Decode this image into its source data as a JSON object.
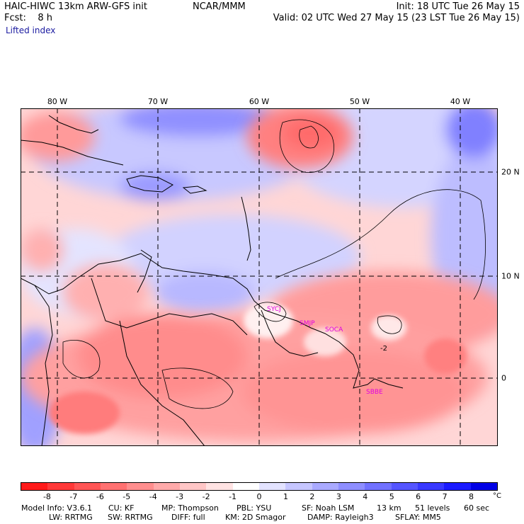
{
  "header": {
    "model": "HAIC-HIWC 13km ARW-GFS init",
    "org": "NCAR/MMM",
    "fcst": "Fcst:    8 h",
    "field": "Lifted index",
    "init": "Init: 18 UTC Tue 26 May 15",
    "valid": "Valid: 02 UTC Wed 27 May 15 (23 LST Tue 26 May 15)"
  },
  "map": {
    "lon_labels": [
      "80 W",
      "70 W",
      "60 W",
      "50 W",
      "40 W"
    ],
    "lat_labels": [
      "20 N",
      "10 N",
      "0"
    ],
    "stations": [
      "SYCJ",
      "SMJP",
      "SOCA",
      "SBBE"
    ],
    "contour_label": "-2"
  },
  "colorbar": {
    "colors": [
      "#ff1a1a",
      "#ff3838",
      "#ff5555",
      "#ff7171",
      "#ff8e8e",
      "#ffaaaa",
      "#ffc6c6",
      "#ffe3e3",
      "#ffffff",
      "#e3e3ff",
      "#c6c6ff",
      "#aaaaff",
      "#8e8eff",
      "#7171ff",
      "#5555ff",
      "#3838ff",
      "#1a1aff",
      "#0000e6"
    ],
    "labels": [
      "-8",
      "-7",
      "-6",
      "-5",
      "-4",
      "-3",
      "-2",
      "-1",
      "0",
      "1",
      "2",
      "3",
      "4",
      "5",
      "6",
      "7",
      "8"
    ],
    "unit": "°C"
  },
  "info": {
    "line1": [
      "Model Info: V3.6.1",
      "CU: KF",
      "MP: Thompson",
      "PBL: YSU",
      "SF: Noah LSM",
      "13 km",
      "51 levels",
      "60 sec"
    ],
    "line2": [
      "LW: RRTMG",
      "SW: RRTMG",
      "DIFF: full",
      "KM: 2D Smagor",
      "DAMP: Rayleigh3",
      "SFLAY: MM5"
    ]
  }
}
